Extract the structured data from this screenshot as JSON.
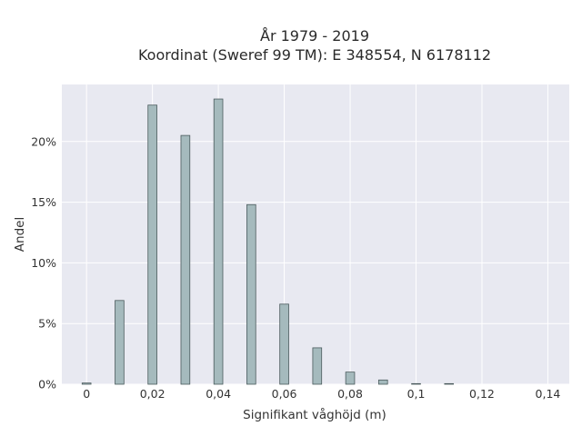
{
  "chart_data": {
    "type": "bar",
    "title": "År 1979 - 2019",
    "subtitle": "Koordinat (Sweref 99 TM): E 348554, N 6178112",
    "xlabel": "Signifikant våghöjd (m)",
    "ylabel": "Andel",
    "x": [
      0,
      0.01,
      0.02,
      0.03,
      0.04,
      0.05,
      0.06,
      0.07,
      0.08,
      0.09,
      0.1,
      0.11
    ],
    "values": [
      0.1,
      6.9,
      23.0,
      20.5,
      23.5,
      14.8,
      6.6,
      3.0,
      1.0,
      0.35,
      0.05,
      0.05
    ],
    "xlim": [
      -0.0075,
      0.1465
    ],
    "ylim": [
      0,
      24.7
    ],
    "xticks": [
      0,
      0.02,
      0.04,
      0.06,
      0.08,
      0.1,
      0.12,
      0.14
    ],
    "xtick_labels": [
      "0",
      "0,02",
      "0,04",
      "0,06",
      "0,08",
      "0,1",
      "0,12",
      "0,14"
    ],
    "yticks": [
      0,
      5,
      10,
      15,
      20
    ],
    "ytick_labels": [
      "0%",
      "5%",
      "10%",
      "15%",
      "20%"
    ],
    "grid": true,
    "colors": {
      "bar_fill": "#a5babd",
      "bar_stroke": "#4a5a5c",
      "plot_bg": "#e8e9f1",
      "grid": "#ffffff"
    }
  }
}
